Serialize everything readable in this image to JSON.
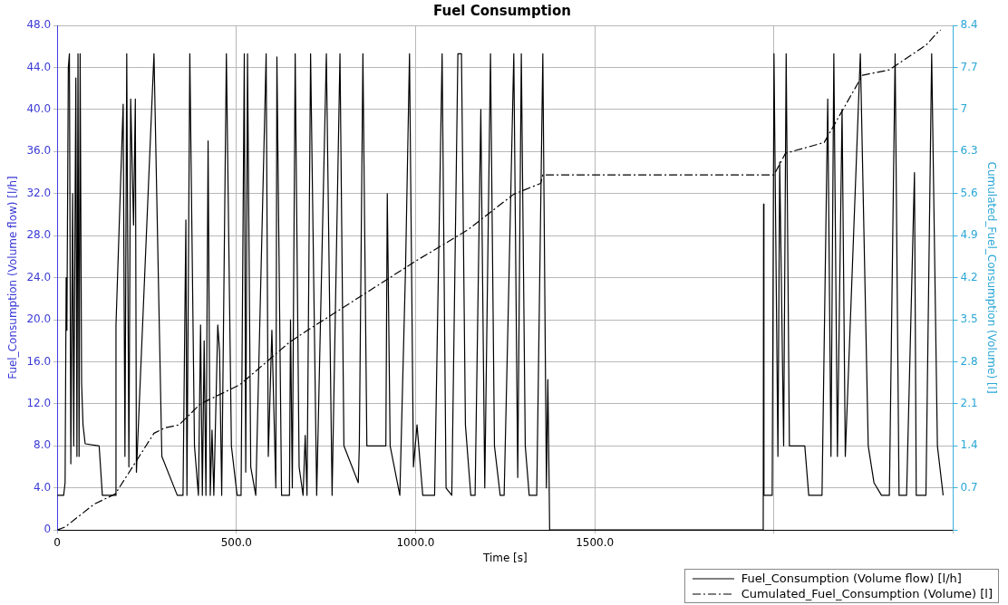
{
  "chart_data": {
    "type": "line",
    "title": "Fuel Consumption",
    "xlabel": "Time [s]",
    "ylabel": "Fuel_Consumption (Volume flow) [l/h]",
    "y2label": "Cumulated_Fuel_Consumption (Volume) [l]",
    "xlim": [
      0,
      2500
    ],
    "xticks": [
      0,
      {
        "value": 500,
        "label": "500.0"
      },
      {
        "value": 1000,
        "label": "1000.0"
      },
      {
        "value": 1500,
        "label": "1500.0"
      },
      {
        "value": 2000,
        "label": null
      },
      {
        "value": 2500,
        "label": null
      }
    ],
    "ylim": [
      0,
      48
    ],
    "yticks": [
      0,
      {
        "value": 4,
        "label": "4.0"
      },
      {
        "value": 8,
        "label": "8.0"
      },
      {
        "value": 12,
        "label": "12.0"
      },
      {
        "value": 16,
        "label": "16.0"
      },
      {
        "value": 20,
        "label": "20.0"
      },
      {
        "value": 24,
        "label": "24.0"
      },
      {
        "value": 28,
        "label": "28.0"
      },
      {
        "value": 32,
        "label": "32.0"
      },
      {
        "value": 36,
        "label": "36.0"
      },
      {
        "value": 40,
        "label": "40.0"
      },
      {
        "value": 44,
        "label": "44.0"
      },
      {
        "value": 48,
        "label": "48.0"
      }
    ],
    "y2lim": [
      0,
      8.4
    ],
    "y2ticks": [
      {
        "value": 0,
        "label": null
      },
      0.7,
      1.4,
      2.1,
      2.8,
      3.5,
      4.2,
      4.9,
      5.6,
      6.3,
      7,
      7.7,
      8.4
    ],
    "grid": true,
    "legend": "bottom right",
    "marker": "none",
    "series": [
      {
        "name": "Fuel_Consumption (Volume flow) [l/h]",
        "color": "#000000",
        "line_style": "solid",
        "x": [
          0,
          18,
          22,
          25,
          27,
          31,
          34,
          38,
          43,
          46,
          52,
          55,
          58,
          61,
          64,
          68,
          72,
          78,
          117,
          126,
          162,
          164,
          184,
          189,
          194,
          200,
          205,
          213,
          218,
          221,
          222,
          270,
          292,
          335,
          351,
          359,
          362,
          370,
          383,
          394,
          400,
          405,
          410,
          415,
          421,
          427,
          432,
          437,
          448,
          453,
          459,
          472,
          486,
          502,
          513,
          522,
          526,
          531,
          540,
          554,
          583,
          589,
          599,
          610,
          613,
          626,
          648,
          651,
          656,
          664,
          675,
          686,
          692,
          697,
          707,
          724,
          751,
          767,
          789,
          800,
          840,
          843,
          853,
          864,
          917,
          921,
          929,
          956,
          972,
          983,
          994,
          1004,
          1020,
          1053,
          1074,
          1085,
          1101,
          1118,
          1128,
          1139,
          1154,
          1166,
          1182,
          1193,
          1209,
          1220,
          1236,
          1247,
          1258,
          1274,
          1285,
          1295,
          1306,
          1317,
          1338,
          1355,
          1365,
          1369,
          1373,
          1374,
          1970,
          1971,
          1972,
          1995,
          2000,
          2011,
          2016,
          2027,
          2034,
          2043,
          2054,
          2086,
          2097,
          2134,
          2150,
          2159,
          2167,
          2177,
          2190,
          2199,
          2241,
          2263,
          2279,
          2300,
          2322,
          2338,
          2349,
          2370,
          2392,
          2397,
          2424,
          2440,
          2456,
          2472
        ],
        "values": [
          3.3,
          3.3,
          4.5,
          24,
          19,
          44,
          45.3,
          6.3,
          32,
          8,
          43,
          7,
          45.3,
          7,
          45.3,
          14,
          10,
          8.2,
          8,
          3.3,
          3.3,
          19.5,
          40.5,
          7,
          45.3,
          6,
          41,
          29,
          41,
          5.5,
          5.5,
          45.3,
          7,
          3.3,
          3.3,
          29.5,
          3.3,
          45.3,
          8,
          3.3,
          19.5,
          3.3,
          18,
          3.3,
          37,
          3.3,
          9.5,
          3.3,
          19.5,
          17,
          3.3,
          45.3,
          8,
          3.3,
          3.3,
          45.3,
          5.5,
          45.3,
          6,
          3.3,
          45.3,
          7,
          19,
          4,
          45,
          3.3,
          3.3,
          20,
          4,
          45.3,
          6,
          3.3,
          9,
          3.3,
          45.3,
          3.3,
          45.3,
          3.3,
          45.3,
          8,
          4.5,
          8,
          45.3,
          8,
          8,
          32,
          8,
          3.3,
          25,
          45.3,
          6,
          10,
          3.3,
          3.3,
          45.3,
          4,
          3.3,
          45.3,
          45.3,
          10,
          3.3,
          3.3,
          40,
          4,
          45.3,
          8,
          3.3,
          3.3,
          20,
          45.3,
          5,
          45.3,
          8,
          3.3,
          3.3,
          45.3,
          4,
          14.3,
          3.3,
          0,
          0,
          31,
          3.3,
          3.3,
          45.3,
          7,
          35,
          8,
          45.3,
          8,
          8,
          8,
          3.3,
          3.3,
          41,
          7,
          45.3,
          7,
          40,
          7,
          45.3,
          8,
          4.5,
          3.3,
          3.3,
          45.3,
          3.3,
          3.3,
          34,
          3.3,
          3.3,
          45.3,
          8,
          3.3
        ]
      },
      {
        "name": "Cumulated_Fuel_Consumption (Volume) [l]",
        "color": "#000000",
        "line_style": "dash-dot",
        "axis": "y2",
        "x": [
          0,
          22,
          103,
          162,
          270,
          300,
          340,
          400,
          510,
          649,
          700,
          1004,
          1144,
          1274,
          1349,
          1355,
          2000,
          2032,
          2140,
          2247,
          2322,
          2424,
          2461,
          2465
        ],
        "values": [
          0,
          0.05,
          0.43,
          0.6,
          1.61,
          1.7,
          1.75,
          2.1,
          2.42,
          3.13,
          3.33,
          4.49,
          4.99,
          5.59,
          5.77,
          5.91,
          5.91,
          6.27,
          6.45,
          7.57,
          7.66,
          8.07,
          8.31,
          8.32
        ]
      }
    ]
  }
}
